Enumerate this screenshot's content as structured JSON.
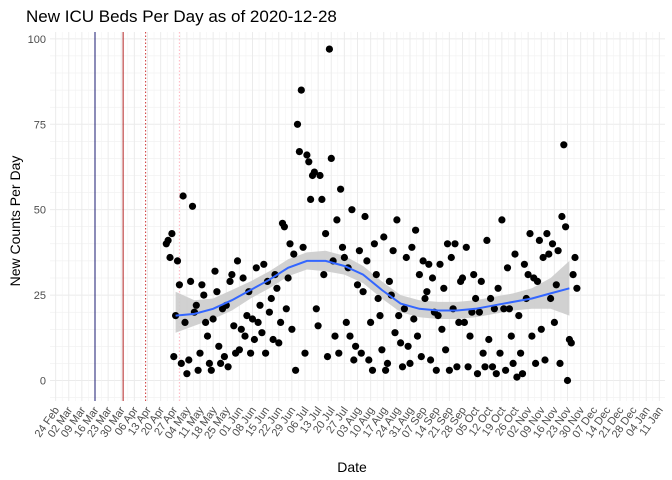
{
  "chart_data": {
    "type": "scatter",
    "title": "New ICU Beds Per Day as of 2020-12-28",
    "xlabel": "Date",
    "ylabel": "New Counts Per Day",
    "ylim": [
      -6,
      102
    ],
    "yticks": [
      0,
      25,
      50,
      75,
      100
    ],
    "x_range_days": [
      -3,
      325
    ],
    "x_origin_date": "2020-02-24",
    "x_tick_labels": [
      "24 Feb",
      "02 Mar",
      "09 Mar",
      "16 Mar",
      "23 Mar",
      "30 Mar",
      "06 Apr",
      "13 Apr",
      "20 Apr",
      "27 Apr",
      "04 May",
      "11 May",
      "18 May",
      "25 May",
      "01 Jun",
      "08 Jun",
      "15 Jun",
      "22 Jun",
      "29 Jun",
      "06 Jul",
      "13 Jul",
      "20 Jul",
      "27 Jul",
      "03 Aug",
      "10 Aug",
      "17 Aug",
      "24 Aug",
      "31 Aug",
      "07 Sep",
      "14 Sep",
      "21 Sep",
      "28 Sep",
      "05 Oct",
      "12 Oct",
      "19 Oct",
      "26 Oct",
      "02 Nov",
      "09 Nov",
      "16 Nov",
      "23 Nov",
      "30 Nov",
      "07 Dec",
      "14 Dec",
      "21 Dec",
      "28 Dec",
      "04 Jan",
      "11 Jan"
    ],
    "grid": true,
    "vlines": [
      {
        "day": 21,
        "color": "#191970",
        "style": "solid"
      },
      {
        "day": 36,
        "color": "#b22222",
        "style": "solid"
      },
      {
        "day": 48,
        "color": "#cd3333",
        "style": "dotted"
      },
      {
        "day": 66,
        "color": "#ffb6c1",
        "style": "dotted"
      }
    ],
    "series": [
      {
        "name": "daily new ICU beds",
        "color": "#000000",
        "points": [
          [
            59,
            40
          ],
          [
            60,
            41
          ],
          [
            61,
            36
          ],
          [
            62,
            43
          ],
          [
            63,
            7
          ],
          [
            64,
            19
          ],
          [
            65,
            35
          ],
          [
            66,
            28
          ],
          [
            67,
            5
          ],
          [
            68,
            54
          ],
          [
            69,
            17
          ],
          [
            70,
            2
          ],
          [
            71,
            6
          ],
          [
            72,
            29
          ],
          [
            73,
            51
          ],
          [
            74,
            20
          ],
          [
            75,
            22
          ],
          [
            76,
            3
          ],
          [
            77,
            8
          ],
          [
            78,
            28
          ],
          [
            79,
            25
          ],
          [
            80,
            17
          ],
          [
            81,
            13
          ],
          [
            82,
            5
          ],
          [
            83,
            3
          ],
          [
            84,
            18
          ],
          [
            85,
            32
          ],
          [
            86,
            26
          ],
          [
            87,
            10
          ],
          [
            88,
            5
          ],
          [
            89,
            21
          ],
          [
            90,
            7
          ],
          [
            91,
            22
          ],
          [
            92,
            4
          ],
          [
            93,
            29
          ],
          [
            94,
            31
          ],
          [
            95,
            16
          ],
          [
            96,
            8
          ],
          [
            97,
            35
          ],
          [
            98,
            9
          ],
          [
            99,
            15
          ],
          [
            100,
            30
          ],
          [
            101,
            13
          ],
          [
            102,
            19
          ],
          [
            103,
            26
          ],
          [
            104,
            8
          ],
          [
            105,
            18
          ],
          [
            106,
            12
          ],
          [
            107,
            33
          ],
          [
            108,
            17
          ],
          [
            109,
            22
          ],
          [
            110,
            14
          ],
          [
            111,
            34
          ],
          [
            112,
            8
          ],
          [
            113,
            29
          ],
          [
            114,
            20
          ],
          [
            115,
            24
          ],
          [
            116,
            12
          ],
          [
            117,
            31
          ],
          [
            118,
            27
          ],
          [
            119,
            11
          ],
          [
            120,
            17
          ],
          [
            121,
            46
          ],
          [
            122,
            45
          ],
          [
            123,
            21
          ],
          [
            124,
            30
          ],
          [
            125,
            40
          ],
          [
            126,
            15
          ],
          [
            127,
            37
          ],
          [
            128,
            3
          ],
          [
            129,
            75
          ],
          [
            130,
            67
          ],
          [
            131,
            85
          ],
          [
            132,
            39
          ],
          [
            133,
            8
          ],
          [
            134,
            66
          ],
          [
            135,
            64
          ],
          [
            136,
            53
          ],
          [
            137,
            60
          ],
          [
            138,
            61
          ],
          [
            139,
            21
          ],
          [
            140,
            16
          ],
          [
            141,
            60
          ],
          [
            142,
            53
          ],
          [
            143,
            31
          ],
          [
            144,
            43
          ],
          [
            145,
            7
          ],
          [
            146,
            97
          ],
          [
            147,
            65
          ],
          [
            148,
            35
          ],
          [
            149,
            13
          ],
          [
            150,
            47
          ],
          [
            151,
            8
          ],
          [
            152,
            56
          ],
          [
            153,
            39
          ],
          [
            154,
            36
          ],
          [
            155,
            17
          ],
          [
            156,
            33
          ],
          [
            157,
            13
          ],
          [
            158,
            50
          ],
          [
            159,
            6
          ],
          [
            160,
            10
          ],
          [
            161,
            28
          ],
          [
            162,
            38
          ],
          [
            163,
            8
          ],
          [
            164,
            26
          ],
          [
            165,
            48
          ],
          [
            166,
            35
          ],
          [
            167,
            6
          ],
          [
            168,
            17
          ],
          [
            169,
            3
          ],
          [
            170,
            40
          ],
          [
            171,
            31
          ],
          [
            172,
            24
          ],
          [
            173,
            19
          ],
          [
            174,
            9
          ],
          [
            175,
            42
          ],
          [
            176,
            3
          ],
          [
            177,
            5
          ],
          [
            178,
            29
          ],
          [
            179,
            25
          ],
          [
            180,
            38
          ],
          [
            181,
            14
          ],
          [
            182,
            47
          ],
          [
            183,
            19
          ],
          [
            184,
            11
          ],
          [
            185,
            4
          ],
          [
            186,
            21
          ],
          [
            187,
            36
          ],
          [
            188,
            10
          ],
          [
            189,
            5
          ],
          [
            190,
            39
          ],
          [
            191,
            18
          ],
          [
            192,
            44
          ],
          [
            193,
            13
          ],
          [
            194,
            31
          ],
          [
            195,
            7
          ],
          [
            196,
            35
          ],
          [
            197,
            24
          ],
          [
            198,
            26
          ],
          [
            199,
            34
          ],
          [
            200,
            6
          ],
          [
            201,
            30
          ],
          [
            202,
            20
          ],
          [
            203,
            3
          ],
          [
            204,
            19
          ],
          [
            205,
            34
          ],
          [
            206,
            15
          ],
          [
            207,
            27
          ],
          [
            208,
            9
          ],
          [
            209,
            40
          ],
          [
            210,
            3
          ],
          [
            211,
            36
          ],
          [
            212,
            21
          ],
          [
            213,
            40
          ],
          [
            214,
            4
          ],
          [
            215,
            17
          ],
          [
            216,
            29
          ],
          [
            217,
            30
          ],
          [
            218,
            17
          ],
          [
            219,
            39
          ],
          [
            220,
            4
          ],
          [
            221,
            13
          ],
          [
            222,
            20
          ],
          [
            223,
            31
          ],
          [
            224,
            24
          ],
          [
            225,
            2
          ],
          [
            226,
            20
          ],
          [
            227,
            29
          ],
          [
            228,
            8
          ],
          [
            229,
            4
          ],
          [
            230,
            41
          ],
          [
            231,
            12
          ],
          [
            232,
            24
          ],
          [
            233,
            4
          ],
          [
            234,
            21
          ],
          [
            235,
            2
          ],
          [
            236,
            27
          ],
          [
            237,
            8
          ],
          [
            238,
            47
          ],
          [
            239,
            21
          ],
          [
            240,
            3
          ],
          [
            241,
            33
          ],
          [
            242,
            21
          ],
          [
            243,
            13
          ],
          [
            244,
            5
          ],
          [
            245,
            37
          ],
          [
            246,
            1
          ],
          [
            247,
            19
          ],
          [
            248,
            8
          ],
          [
            249,
            2
          ],
          [
            250,
            34
          ],
          [
            251,
            24
          ],
          [
            252,
            31
          ],
          [
            253,
            43
          ],
          [
            254,
            13
          ],
          [
            255,
            30
          ],
          [
            256,
            5
          ],
          [
            257,
            29
          ],
          [
            258,
            41
          ],
          [
            259,
            15
          ],
          [
            260,
            36
          ],
          [
            261,
            6
          ],
          [
            262,
            43
          ],
          [
            263,
            37
          ],
          [
            264,
            24
          ],
          [
            265,
            40
          ],
          [
            266,
            17
          ],
          [
            267,
            28
          ],
          [
            268,
            38
          ],
          [
            269,
            5
          ],
          [
            270,
            48
          ],
          [
            271,
            69
          ],
          [
            272,
            45
          ],
          [
            273,
            0
          ],
          [
            274,
            12
          ],
          [
            275,
            11
          ],
          [
            276,
            31
          ],
          [
            277,
            36
          ],
          [
            278,
            27
          ]
        ]
      }
    ],
    "smooth": {
      "color": "#3366ff",
      "band_color": "#cccccc",
      "x": [
        64,
        74,
        84,
        94,
        104,
        114,
        124,
        134,
        144,
        154,
        164,
        174,
        184,
        194,
        204,
        214,
        224,
        234,
        244,
        254,
        264,
        274
      ],
      "y": [
        19,
        19.5,
        21,
        23.5,
        26.5,
        29.5,
        33,
        35,
        35,
        33.5,
        31,
        26.5,
        22.5,
        21,
        20.5,
        20.5,
        21,
        22,
        23,
        24,
        25.5,
        27
      ],
      "lower": [
        14,
        16,
        18,
        20.5,
        24,
        27,
        30.5,
        32.5,
        32,
        31,
        28.5,
        24,
        20,
        18.5,
        18,
        18,
        18.5,
        19.5,
        20.5,
        21,
        21,
        19
      ],
      "upper": [
        26,
        23.5,
        24,
        26.5,
        29,
        32,
        35.5,
        37.5,
        38,
        36.5,
        33.5,
        29,
        25,
        23.5,
        23,
        23,
        23.5,
        24.5,
        25.5,
        27,
        30,
        35
      ]
    }
  }
}
